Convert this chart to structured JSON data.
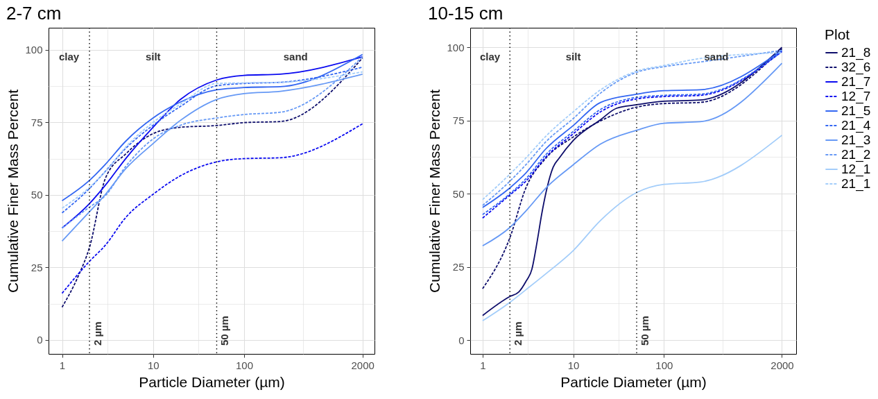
{
  "chart_data": [
    {
      "type": "line",
      "title": "2-7 cm",
      "xlabel": "Particle Diameter (µm)",
      "ylabel": "Cumulative Finer Mass Percent",
      "log": "x",
      "grid": true,
      "xlim": [
        0.71,
        2710
      ],
      "ylim": [
        -4.8,
        107.6
      ],
      "xticks": [
        1,
        {
          "value": 3.162,
          "label": null
        },
        10,
        {
          "value": 31.62,
          "label": null
        },
        100,
        {
          "value": 447.2,
          "label": null
        },
        2000
      ],
      "yticks": [
        0,
        {
          "value": 12.5,
          "label": null
        },
        25,
        {
          "value": 37.5,
          "label": null
        },
        50,
        {
          "value": 62.5,
          "label": null
        },
        75,
        {
          "value": 87.5,
          "label": null
        },
        100
      ],
      "x": [
        1,
        2,
        3,
        5,
        10,
        20,
        50,
        100,
        250,
        2000
      ],
      "series": [
        {
          "name": "32_6",
          "color": "#0d0d6b",
          "line_style": "dashed",
          "x": [
            1,
            1.5,
            2,
            3,
            5,
            10,
            20,
            50,
            100,
            250,
            2000
          ],
          "values": [
            11.3,
            21.9,
            31.9,
            55.8,
            64.1,
            71.1,
            73.3,
            73.9,
            74.9,
            75.3,
            97.2
          ]
        },
        {
          "name": "21_7",
          "color": "#0a0af0",
          "line_style": "solid",
          "values": [
            38.6,
            47,
            53.4,
            62.5,
            73.3,
            82.9,
            89.6,
            91.2,
            91.6,
            97.6
          ]
        },
        {
          "name": "12_7",
          "color": "#0a0af0",
          "line_style": "dashed",
          "values": [
            16.1,
            27.1,
            32.7,
            42.2,
            50.2,
            56.6,
            61.4,
            62.5,
            62.8,
            74.5
          ]
        },
        {
          "name": "21_5",
          "color": "#3266f2",
          "line_style": "solid",
          "values": [
            48,
            55,
            60.6,
            68.5,
            76.5,
            82,
            86.2,
            87,
            87.3,
            98.4
          ]
        },
        {
          "name": "21_4",
          "color": "#3266f2",
          "line_style": "dashed",
          "values": [
            43.8,
            52.2,
            58.2,
            66,
            74,
            80.5,
            87.6,
            88.4,
            88.8,
            94
          ]
        },
        {
          "name": "21_3",
          "color": "#6699f5",
          "line_style": "solid",
          "values": [
            34.1,
            44.2,
            50.2,
            59,
            67.7,
            75.7,
            82.9,
            84.9,
            85.7,
            91.6
          ]
        },
        {
          "name": "21_2",
          "color": "#6699f5",
          "line_style": "dashed",
          "values": [
            38.6,
            45.8,
            49.8,
            59.8,
            69.3,
            74,
            76.5,
            77.7,
            78.5,
            97.6
          ]
        },
        {
          "name": "21_1",
          "color": "#a3cdfa",
          "line_style": "dashed",
          "values": [
            45.4,
            52.6,
            58,
            66.5,
            75,
            81.3,
            88.4,
            88.6,
            88.8,
            92.4
          ]
        }
      ],
      "ref_lines": [
        {
          "axis": "x",
          "value": 2,
          "label": "2 µm",
          "line_style": "dotted"
        },
        {
          "axis": "x",
          "value": 50,
          "label": "50 µm",
          "line_style": "dotted"
        }
      ],
      "annotations": [
        "clay",
        "silt",
        "sand"
      ],
      "legend": "right"
    },
    {
      "type": "line",
      "title": "10-15 cm",
      "xlabel": "Particle Diameter (µm)",
      "ylabel": "Cumulative Finer Mass Percent",
      "legend_title": "Plot",
      "legend": "right",
      "log": "x",
      "grid": true,
      "xlim": [
        0.73,
        2870
      ],
      "ylim": [
        -4.7,
        106.7
      ],
      "xticks": [
        1,
        {
          "value": 3.162,
          "label": null
        },
        10,
        {
          "value": 31.62,
          "label": null
        },
        100,
        {
          "value": 447.2,
          "label": null
        },
        2000
      ],
      "yticks": [
        0,
        {
          "value": 12.5,
          "label": null
        },
        25,
        {
          "value": 37.5,
          "label": null
        },
        50,
        {
          "value": 62.5,
          "label": null
        },
        75,
        {
          "value": 87.5,
          "label": null
        },
        100
      ],
      "x": [
        1,
        2,
        3,
        5,
        10,
        20,
        50,
        100,
        250,
        2000
      ],
      "series": [
        {
          "name": "21_8",
          "color": "#0d0d6b",
          "line_style": "solid",
          "x": [
            1,
            2,
            2.5,
            3,
            3.5,
            4,
            4.5,
            5,
            6,
            7,
            10,
            20,
            30,
            50,
            100,
            250,
            2000
          ],
          "values": [
            8.4,
            14.9,
            16.4,
            20,
            24.3,
            33.8,
            43.3,
            50.4,
            59.1,
            62.2,
            68.2,
            75.3,
            79.2,
            80.4,
            81.6,
            82,
            100
          ]
        },
        {
          "name": "32_6",
          "color": "#0d0d6b",
          "line_style": "dashed",
          "values": [
            17.6,
            35,
            52,
            62.2,
            69.4,
            74.9,
            79.6,
            80.8,
            81.2,
            99.5
          ]
        },
        {
          "name": "12_7",
          "color": "#0a0af0",
          "line_style": "dashed",
          "values": [
            41.7,
            49.6,
            54.3,
            62.6,
            70.5,
            78,
            82.4,
            83.2,
            83.6,
            98.6
          ]
        },
        {
          "name": "21_5",
          "color": "#3266f2",
          "line_style": "solid",
          "values": [
            45.3,
            52,
            57.1,
            65.4,
            73.3,
            81.2,
            84,
            85.2,
            85.5,
            99
          ]
        },
        {
          "name": "21_4",
          "color": "#3266f2",
          "line_style": "dashed",
          "values": [
            42.9,
            50,
            55.1,
            63.4,
            71.3,
            78.8,
            82.9,
            83.6,
            84,
            98.6
          ]
        },
        {
          "name": "21_3",
          "color": "#6699f5",
          "line_style": "solid",
          "values": [
            32.2,
            38.5,
            44.1,
            52,
            59.9,
            67,
            71.7,
            74.1,
            74.6,
            94.6
          ]
        },
        {
          "name": "21_2",
          "color": "#6699f5",
          "line_style": "dashed",
          "values": [
            46,
            54.3,
            59.9,
            67.8,
            75.7,
            84.4,
            91.5,
            93.4,
            95,
            99
          ]
        },
        {
          "name": "12_1",
          "color": "#a3cdfa",
          "line_style": "solid",
          "values": [
            6.6,
            12.9,
            17.2,
            22.7,
            30.6,
            40.9,
            50.4,
            53.2,
            54,
            70
          ]
        },
        {
          "name": "21_1",
          "color": "#a3cdfa",
          "line_style": "dashed",
          "values": [
            48,
            56.7,
            62.2,
            69.7,
            78,
            85.5,
            91.9,
            93.8,
            96.2,
            98.2
          ]
        }
      ],
      "ref_lines": [
        {
          "axis": "x",
          "value": 2,
          "label": "2 µm",
          "line_style": "dotted"
        },
        {
          "axis": "x",
          "value": 50,
          "label": "50 µm",
          "line_style": "dotted"
        }
      ],
      "annotations": [
        "clay",
        "silt",
        "sand"
      ]
    }
  ]
}
